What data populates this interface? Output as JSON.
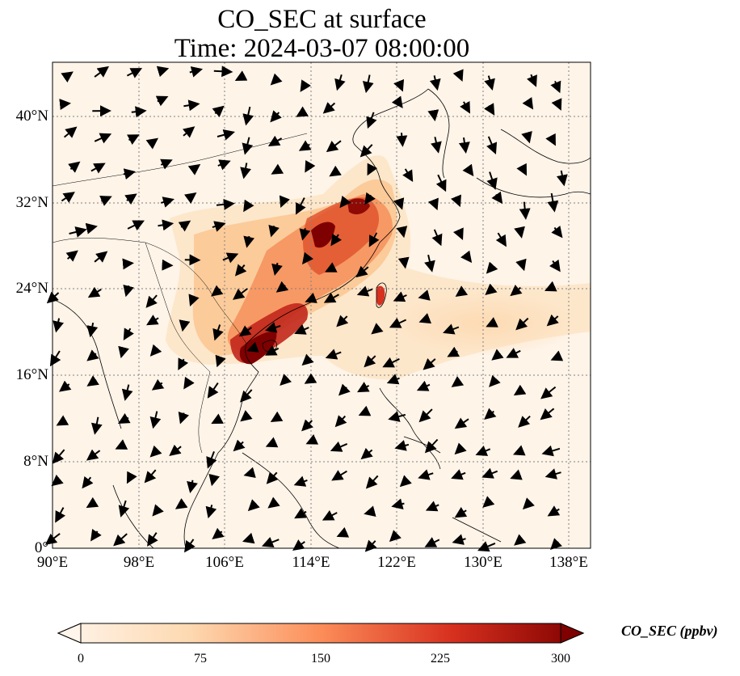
{
  "title_line1": "CO_SEC at surface",
  "title_line2": "Time: 2024-03-07 08:00:00",
  "map": {
    "extent": {
      "lon_min": 90,
      "lon_max": 140,
      "lat_min": 0,
      "lat_max": 45
    },
    "x_ticks": [
      "90°E",
      "98°E",
      "106°E",
      "114°E",
      "122°E",
      "130°E",
      "138°E"
    ],
    "x_tick_values": [
      90,
      98,
      106,
      114,
      122,
      130,
      138
    ],
    "y_ticks": [
      "0°",
      "8°N",
      "16°N",
      "24°N",
      "32°N",
      "40°N"
    ],
    "y_tick_values": [
      0,
      8,
      16,
      24,
      32,
      40
    ],
    "gridlines": true,
    "field_colormap": [
      "#fff5eb",
      "#fdd9b1",
      "#fc8d59",
      "#d7301f",
      "#7f0000"
    ]
  },
  "colorbar": {
    "label": "CO_SEC (ppbv)",
    "ticks": [
      "0",
      "75",
      "150",
      "225",
      "300"
    ],
    "tick_values": [
      0,
      75,
      150,
      225,
      300
    ],
    "min": 0,
    "max": 300,
    "extend": "both"
  }
}
